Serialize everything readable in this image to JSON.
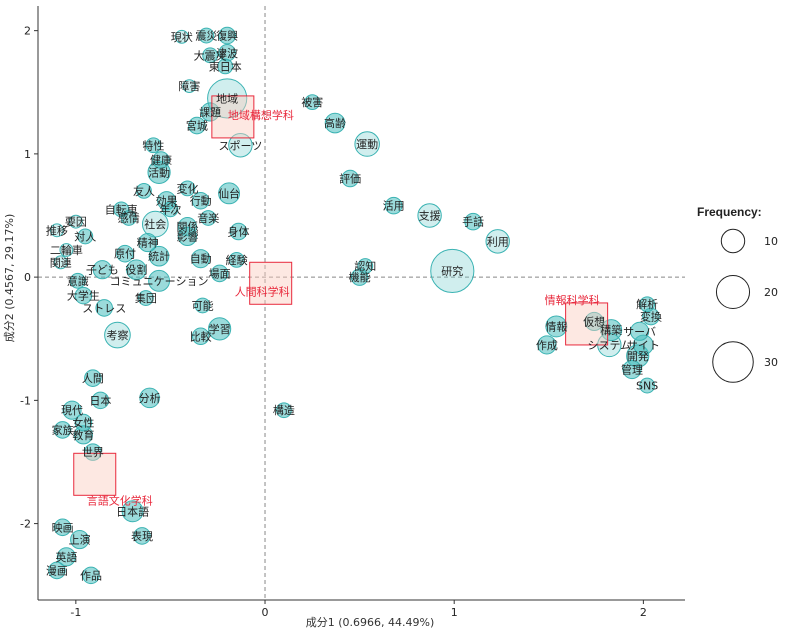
{
  "chart_data": {
    "type": "scatter",
    "subtype": "correspondence-analysis bubble plot",
    "xlabel": "成分1 (0.6966, 44.49%)",
    "ylabel": "成分2 (0.4567, 29.17%)",
    "xlim": [
      -1.2,
      2.22
    ],
    "ylim": [
      -2.62,
      2.2
    ],
    "xticks": [
      "-1",
      "0",
      "1",
      "2"
    ],
    "yticks": [
      "2",
      "1",
      "0",
      "-1",
      "-2"
    ],
    "xtick_values": [
      -1,
      0,
      1,
      2
    ],
    "ytick_values": [
      2,
      1,
      0,
      -1,
      -2
    ],
    "legend": {
      "title": "Frequency:",
      "placement": "right",
      "sizes": [
        10,
        20,
        30
      ],
      "labels": [
        "10",
        "20",
        "30"
      ]
    },
    "groups": [
      {
        "name": "地域構想学科",
        "x": -0.17,
        "y": 1.3
      },
      {
        "name": "人間科学科",
        "x": 0.03,
        "y": -0.05
      },
      {
        "name": "情報科学科",
        "x": 1.7,
        "y": -0.38
      },
      {
        "name": "言語文化学科",
        "x": -0.9,
        "y": -1.6
      }
    ],
    "words": [
      {
        "name": "現状",
        "x": -0.44,
        "y": 1.95,
        "freq": 3
      },
      {
        "name": "震災",
        "x": -0.31,
        "y": 1.96,
        "freq": 4
      },
      {
        "name": "復興",
        "x": -0.2,
        "y": 1.96,
        "freq": 5
      },
      {
        "name": "大震災",
        "x": -0.29,
        "y": 1.8,
        "freq": 4
      },
      {
        "name": "津波",
        "x": -0.2,
        "y": 1.82,
        "freq": 5
      },
      {
        "name": "東日本",
        "x": -0.21,
        "y": 1.71,
        "freq": 4
      },
      {
        "name": "障害",
        "x": -0.4,
        "y": 1.55,
        "freq": 3
      },
      {
        "name": "地域",
        "x": -0.2,
        "y": 1.45,
        "freq": 28
      },
      {
        "name": "課題",
        "x": -0.29,
        "y": 1.34,
        "freq": 6
      },
      {
        "name": "宮城",
        "x": -0.36,
        "y": 1.23,
        "freq": 5
      },
      {
        "name": "スポーツ",
        "x": -0.13,
        "y": 1.07,
        "freq": 10
      },
      {
        "name": "被害",
        "x": 0.25,
        "y": 1.42,
        "freq": 4
      },
      {
        "name": "高齢",
        "x": 0.37,
        "y": 1.25,
        "freq": 7
      },
      {
        "name": "運動",
        "x": 0.54,
        "y": 1.08,
        "freq": 11
      },
      {
        "name": "評価",
        "x": 0.45,
        "y": 0.8,
        "freq": 5
      },
      {
        "name": "活用",
        "x": 0.68,
        "y": 0.58,
        "freq": 5
      },
      {
        "name": "支援",
        "x": 0.87,
        "y": 0.5,
        "freq": 10
      },
      {
        "name": "手話",
        "x": 1.1,
        "y": 0.45,
        "freq": 5
      },
      {
        "name": "利用",
        "x": 1.23,
        "y": 0.29,
        "freq": 10
      },
      {
        "name": "研究",
        "x": 0.99,
        "y": 0.05,
        "freq": 34
      },
      {
        "name": "認知",
        "x": 0.53,
        "y": 0.09,
        "freq": 4
      },
      {
        "name": "機能",
        "x": 0.5,
        "y": 0.0,
        "freq": 5
      },
      {
        "name": "特性",
        "x": -0.59,
        "y": 1.07,
        "freq": 4
      },
      {
        "name": "健康",
        "x": -0.55,
        "y": 0.95,
        "freq": 5
      },
      {
        "name": "活動",
        "x": -0.56,
        "y": 0.85,
        "freq": 9
      },
      {
        "name": "友人",
        "x": -0.64,
        "y": 0.7,
        "freq": 4
      },
      {
        "name": "変化",
        "x": -0.41,
        "y": 0.72,
        "freq": 4
      },
      {
        "name": "仙台",
        "x": -0.19,
        "y": 0.68,
        "freq": 8
      },
      {
        "name": "効果",
        "x": -0.52,
        "y": 0.62,
        "freq": 6
      },
      {
        "name": "行動",
        "x": -0.34,
        "y": 0.62,
        "freq": 5
      },
      {
        "name": "自転車",
        "x": -0.76,
        "y": 0.55,
        "freq": 4
      },
      {
        "name": "年次",
        "x": -0.5,
        "y": 0.55,
        "freq": 4
      },
      {
        "name": "感情",
        "x": -0.72,
        "y": 0.48,
        "freq": 4
      },
      {
        "name": "音楽",
        "x": -0.3,
        "y": 0.48,
        "freq": 4
      },
      {
        "name": "要因",
        "x": -1.0,
        "y": 0.45,
        "freq": 3
      },
      {
        "name": "社会",
        "x": -0.58,
        "y": 0.43,
        "freq": 12
      },
      {
        "name": "関係",
        "x": -0.41,
        "y": 0.41,
        "freq": 6
      },
      {
        "name": "推移",
        "x": -1.1,
        "y": 0.38,
        "freq": 3
      },
      {
        "name": "対人",
        "x": -0.95,
        "y": 0.33,
        "freq": 4
      },
      {
        "name": "影響",
        "x": -0.41,
        "y": 0.33,
        "freq": 6
      },
      {
        "name": "身体",
        "x": -0.14,
        "y": 0.37,
        "freq": 5
      },
      {
        "name": "精神",
        "x": -0.62,
        "y": 0.28,
        "freq": 6
      },
      {
        "name": "二輪車",
        "x": -1.05,
        "y": 0.22,
        "freq": 3
      },
      {
        "name": "原付",
        "x": -0.74,
        "y": 0.19,
        "freq": 5
      },
      {
        "name": "統計",
        "x": -0.56,
        "y": 0.17,
        "freq": 7
      },
      {
        "name": "自動",
        "x": -0.34,
        "y": 0.15,
        "freq": 6
      },
      {
        "name": "経験",
        "x": -0.15,
        "y": 0.14,
        "freq": 4
      },
      {
        "name": "関連",
        "x": -1.08,
        "y": 0.12,
        "freq": 3
      },
      {
        "name": "子ども",
        "x": -0.86,
        "y": 0.06,
        "freq": 6
      },
      {
        "name": "役割",
        "x": -0.68,
        "y": 0.06,
        "freq": 7
      },
      {
        "name": "意識",
        "x": -0.99,
        "y": -0.03,
        "freq": 4
      },
      {
        "name": "コミュニケーション",
        "x": -0.56,
        "y": -0.03,
        "freq": 8
      },
      {
        "name": "場面",
        "x": -0.24,
        "y": 0.03,
        "freq": 5
      },
      {
        "name": "大学生",
        "x": -0.96,
        "y": -0.15,
        "freq": 5
      },
      {
        "name": "集団",
        "x": -0.63,
        "y": -0.17,
        "freq": 4
      },
      {
        "name": "ストレス",
        "x": -0.85,
        "y": -0.25,
        "freq": 5
      },
      {
        "name": "可能",
        "x": -0.33,
        "y": -0.23,
        "freq": 4
      },
      {
        "name": "学習",
        "x": -0.24,
        "y": -0.42,
        "freq": 9
      },
      {
        "name": "比較",
        "x": -0.34,
        "y": -0.48,
        "freq": 5
      },
      {
        "name": "考察",
        "x": -0.78,
        "y": -0.47,
        "freq": 12
      },
      {
        "name": "人間",
        "x": -0.91,
        "y": -0.82,
        "freq": 5
      },
      {
        "name": "分析",
        "x": -0.61,
        "y": -0.98,
        "freq": 7
      },
      {
        "name": "日本",
        "x": -0.87,
        "y": -1.0,
        "freq": 5
      },
      {
        "name": "現代",
        "x": -1.02,
        "y": -1.08,
        "freq": 6
      },
      {
        "name": "女性",
        "x": -0.96,
        "y": -1.18,
        "freq": 5
      },
      {
        "name": "家族",
        "x": -1.07,
        "y": -1.24,
        "freq": 5
      },
      {
        "name": "教育",
        "x": -0.96,
        "y": -1.28,
        "freq": 6
      },
      {
        "name": "構造",
        "x": 0.1,
        "y": -1.08,
        "freq": 4
      },
      {
        "name": "世界",
        "x": -0.91,
        "y": -1.42,
        "freq": 5
      },
      {
        "name": "日本語",
        "x": -0.7,
        "y": -1.9,
        "freq": 8
      },
      {
        "name": "表現",
        "x": -0.65,
        "y": -2.1,
        "freq": 5
      },
      {
        "name": "映画",
        "x": -1.07,
        "y": -2.03,
        "freq": 5
      },
      {
        "name": "上演",
        "x": -0.98,
        "y": -2.13,
        "freq": 6
      },
      {
        "name": "英語",
        "x": -1.05,
        "y": -2.27,
        "freq": 6
      },
      {
        "name": "漫画",
        "x": -1.1,
        "y": -2.38,
        "freq": 5
      },
      {
        "name": "作品",
        "x": -0.92,
        "y": -2.42,
        "freq": 5
      },
      {
        "name": "解析",
        "x": 2.02,
        "y": -0.22,
        "freq": 4
      },
      {
        "name": "変換",
        "x": 2.04,
        "y": -0.32,
        "freq": 5
      },
      {
        "name": "情報",
        "x": 1.54,
        "y": -0.4,
        "freq": 8
      },
      {
        "name": "仮想",
        "x": 1.74,
        "y": -0.36,
        "freq": 6
      },
      {
        "name": "構築",
        "x": 1.83,
        "y": -0.43,
        "freq": 8
      },
      {
        "name": "サーバ",
        "x": 1.98,
        "y": -0.44,
        "freq": 6
      },
      {
        "name": "サイト",
        "x": 2.0,
        "y": -0.55,
        "freq": 7
      },
      {
        "name": "作成",
        "x": 1.49,
        "y": -0.55,
        "freq": 6
      },
      {
        "name": "システム",
        "x": 1.82,
        "y": -0.55,
        "freq": 10
      },
      {
        "name": "開発",
        "x": 1.97,
        "y": -0.64,
        "freq": 9
      },
      {
        "name": "管理",
        "x": 1.94,
        "y": -0.75,
        "freq": 6
      },
      {
        "name": "SNS",
        "x": 2.02,
        "y": -0.88,
        "freq": 4
      }
    ]
  }
}
